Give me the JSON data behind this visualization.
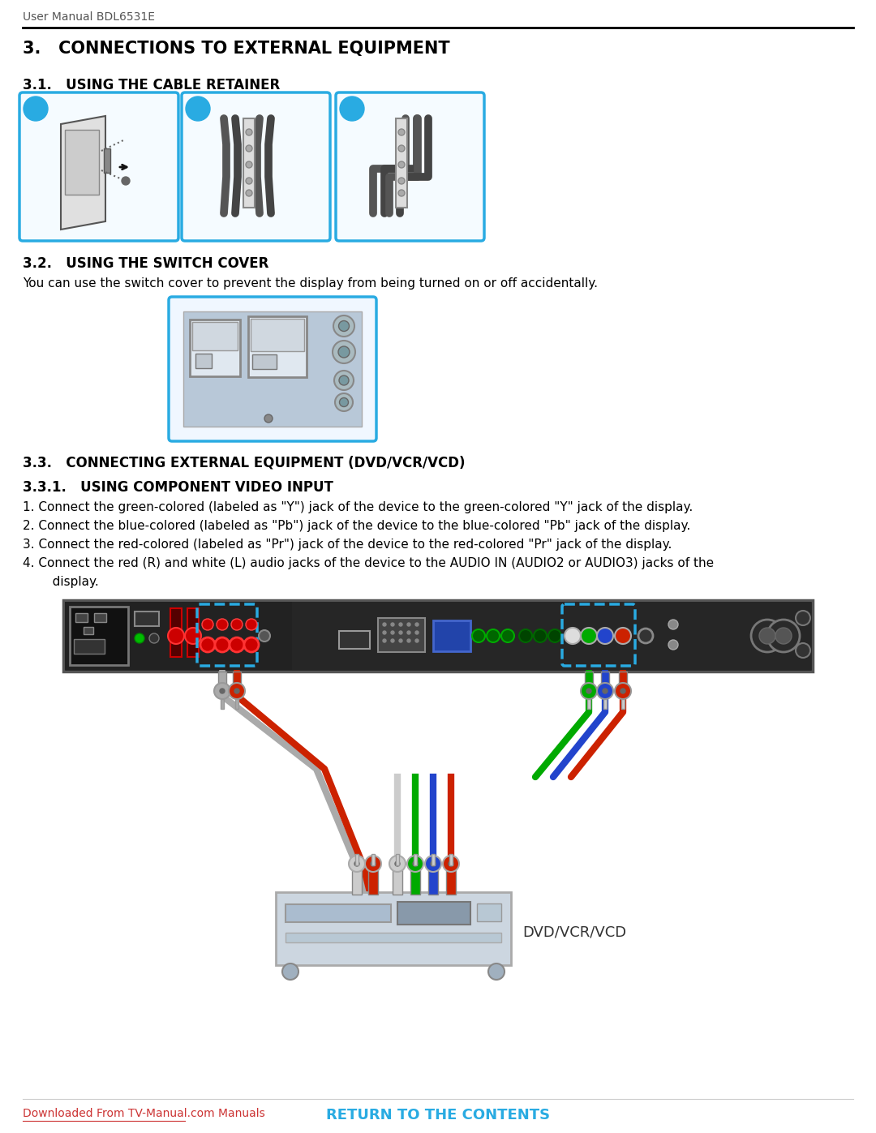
{
  "header_text": "User Manual BDL6531E",
  "section3_title": "3.   CONNECTIONS TO EXTERNAL EQUIPMENT",
  "section31_title": "3.1.   USING THE CABLE RETAINER",
  "section32_title": "3.2.   USING THE SWITCH COVER",
  "section32_body": "You can use the switch cover to prevent the display from being turned on or off accidentally.",
  "section33_title": "3.3.   CONNECTING EXTERNAL EQUIPMENT (DVD/VCR/VCD)",
  "section331_title": "3.3.1.   USING COMPONENT VIDEO INPUT",
  "item1": "1. Connect the green-colored (labeled as \"Y\") jack of the device to the green-colored \"Y\" jack of the display.",
  "item2": "2. Connect the blue-colored (labeled as \"Pb\") jack of the device to the blue-colored \"Pb\" jack of the display.",
  "item3": "3. Connect the red-colored (labeled as \"Pr\") jack of the device to the red-colored \"Pr\" jack of the display.",
  "item4a": "4. Connect the red (R) and white (L) audio jacks of the device to the AUDIO IN (AUDIO2 or AUDIO3) jacks of the",
  "item4b": "   display.",
  "dvd_label": "DVD/VCR/VCD",
  "footer_link": "Downloaded From TV-Manual.com Manuals",
  "footer_return": "RETURN TO THE CONTENTS",
  "bg_color": "#ffffff",
  "box_border_color": "#29abe2",
  "label_circle_color": "#29abe2",
  "footer_link_color": "#cc3333",
  "footer_return_color": "#29abe2",
  "panel_bg": "#1e1e1e",
  "panel_border": "#555555"
}
